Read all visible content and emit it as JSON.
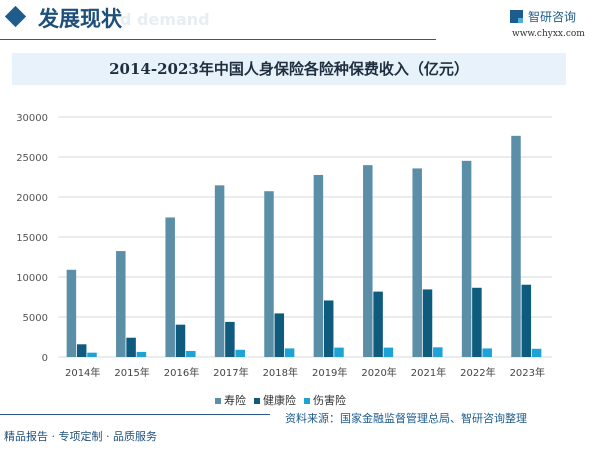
{
  "header": {
    "title": "发展现状",
    "watermark_text": "d demand",
    "logo_name": "智研咨询",
    "logo_url": "www.chyxx.com"
  },
  "chart_data": {
    "type": "bar",
    "title": "2014-2023年中国人身保险各险种保费收入（亿元）",
    "categories": [
      "2014年",
      "2015年",
      "2016年",
      "2017年",
      "2018年",
      "2019年",
      "2020年",
      "2021年",
      "2022年",
      "2023年"
    ],
    "series": [
      {
        "name": "寿险",
        "color": "#5b8fa8",
        "values": [
          10902,
          13242,
          17442,
          21456,
          20723,
          22754,
          23982,
          23572,
          24519,
          27646
        ]
      },
      {
        "name": "健康险",
        "color": "#0f5b7e",
        "values": [
          1587,
          2410,
          4042,
          4389,
          5448,
          7066,
          8173,
          8447,
          8653,
          9035
        ]
      },
      {
        "name": "伤害险",
        "color": "#1ea3d6",
        "values": [
          542,
          636,
          750,
          901,
          1076,
          1175,
          1174,
          1210,
          1073,
          1029
        ]
      }
    ],
    "ylim": [
      0,
      30000
    ],
    "yticks": [
      "0",
      "5000",
      "10000",
      "15000",
      "20000",
      "25000",
      "30000"
    ],
    "grid": true,
    "legend": "bottom"
  },
  "footer": {
    "source": "资料来源：国家金融监督管理总局、智研咨询整理",
    "slogan": "精品报告 · 专项定制 · 品质服务"
  }
}
